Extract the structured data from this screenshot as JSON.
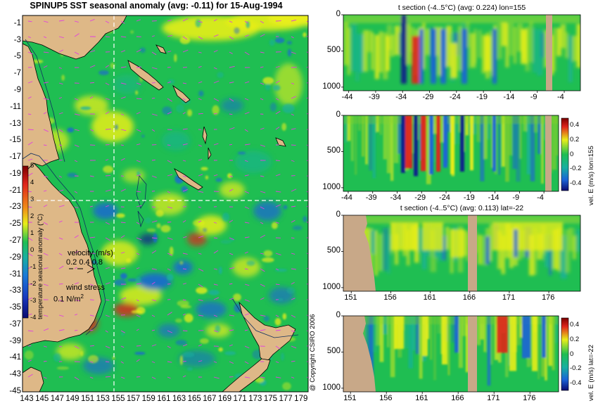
{
  "chart_data": [
    {
      "type": "heatmap",
      "panel": "map",
      "title": "SPINUP5 SST seasonal anomaly (avg: -0.11) for 15-Aug-1994",
      "x_ticks": [
        "143",
        "145",
        "147",
        "149",
        "151",
        "153",
        "155",
        "157",
        "159",
        "161",
        "163",
        "165",
        "167",
        "169",
        "171",
        "173",
        "175",
        "177",
        "179"
      ],
      "y_ticks": [
        "-1",
        "-3",
        "-5",
        "-7",
        "-9",
        "-11",
        "-13",
        "-15",
        "-17",
        "-19",
        "-21",
        "-23",
        "-25",
        "-27",
        "-29",
        "-31",
        "-33",
        "-35",
        "-37",
        "-39",
        "-41",
        "-43",
        "-45"
      ],
      "xlim": [
        142.5,
        180
      ],
      "ylim": [
        -45,
        0
      ],
      "crosshair": {
        "lon": 155,
        "lat": -22
      },
      "colorbar": {
        "label": "temperature seasonal anomaly (°C)",
        "range": [
          -4,
          5
        ],
        "ticks": [
          "5",
          "4",
          "3",
          "2",
          "1",
          "0",
          "-1",
          "-2",
          "-3",
          "-4"
        ]
      },
      "legend": {
        "velocity_label": "velocity (m/s)",
        "velocity_values": "0.2 0.4 0.8",
        "wind_label": "wind stress",
        "wind_value": "0.1 N/m",
        "wind_sup": "2"
      }
    },
    {
      "type": "heatmap",
      "panel": "t-section-lon",
      "title": "t section (-4..5°C) (avg: 0.224) lon=155",
      "x_ticks": [
        "-44",
        "-39",
        "-34",
        "-29",
        "-24",
        "-19",
        "-14",
        "-9",
        "-4"
      ],
      "y_ticks": [
        "0",
        "500",
        "1000"
      ],
      "xlim": [
        -45,
        -1
      ],
      "ylim": [
        1050,
        0
      ]
    },
    {
      "type": "heatmap",
      "panel": "vel-section-lon",
      "title": "",
      "x_ticks": [
        "-44",
        "-39",
        "-34",
        "-29",
        "-24",
        "-19",
        "-14",
        "-9",
        "-4"
      ],
      "y_ticks": [
        "0",
        "500",
        "1000"
      ],
      "xlim": [
        -45,
        -1
      ],
      "ylim": [
        1050,
        0
      ],
      "colorbar": {
        "label": "vel. E (m/s) lon=155",
        "range": [
          -0.5,
          0.5
        ],
        "ticks": [
          "0.4",
          "0.2",
          "0",
          "-0.2",
          "-0.4"
        ]
      }
    },
    {
      "type": "heatmap",
      "panel": "t-section-lat",
      "title": "t section (-4..5°C) (avg: 0.113) lat=-22",
      "x_ticks": [
        "151",
        "156",
        "161",
        "166",
        "171",
        "176"
      ],
      "y_ticks": [
        "0",
        "500",
        "1000"
      ],
      "xlim": [
        150,
        180
      ],
      "ylim": [
        1050,
        0
      ]
    },
    {
      "type": "heatmap",
      "panel": "vel-section-lat",
      "title": "",
      "x_ticks": [
        "151",
        "156",
        "161",
        "166",
        "171",
        "176"
      ],
      "y_ticks": [
        "0",
        "500",
        "1000"
      ],
      "xlim": [
        150,
        180
      ],
      "ylim": [
        1050,
        0
      ],
      "colorbar": {
        "label": "vel. E (m/s) lat=-22",
        "range": [
          -0.5,
          0.5
        ],
        "ticks": [
          "0.4",
          "0.2",
          "0",
          "-0.2",
          "-0.4"
        ]
      }
    }
  ],
  "copyright": "@ Copyright CSIRO 2006",
  "colors": {
    "land": "#deb887",
    "ocean_base": "#1fbe52",
    "warm": "#e8ee1a",
    "hot": "#e0251b",
    "cool": "#1a63d8",
    "cold": "#0a1a8c",
    "vector": "#e040e0",
    "crosshair": "#ffffff"
  }
}
